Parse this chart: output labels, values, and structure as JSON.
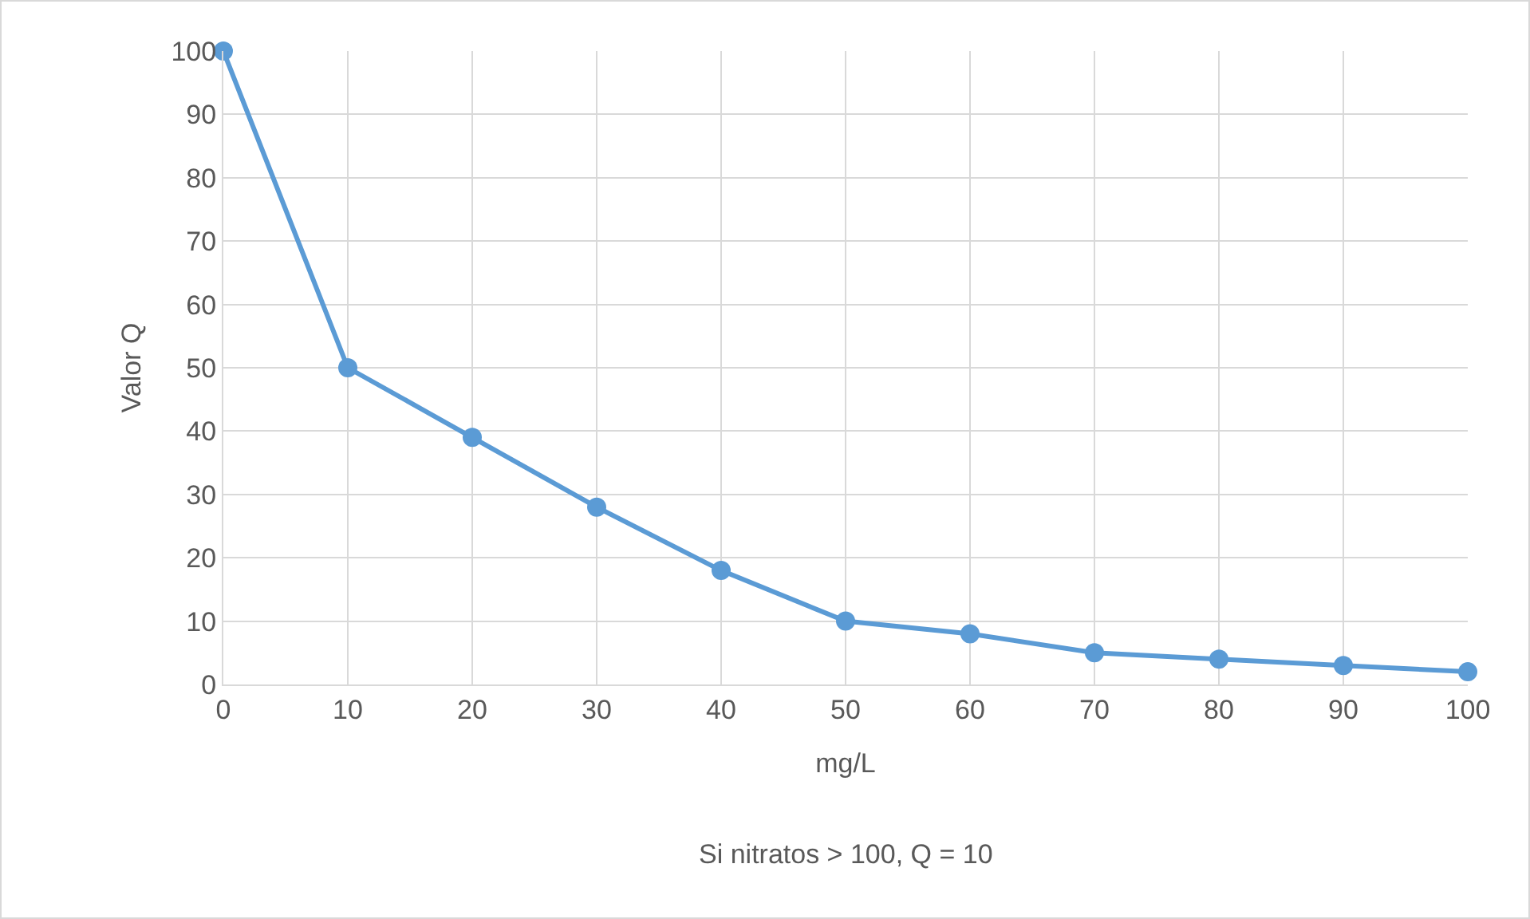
{
  "chart_data": {
    "type": "line",
    "xlabel": "mg/L",
    "ylabel": "Valor Q",
    "annotations": [
      "Si nitratos > 100, Q = 10"
    ],
    "x": [
      0,
      10,
      20,
      30,
      40,
      50,
      60,
      70,
      80,
      90,
      100
    ],
    "series": [
      {
        "color": "#5b9bd5",
        "values": [
          100,
          50,
          39,
          28,
          18,
          10,
          8,
          5,
          4,
          3,
          2
        ]
      }
    ],
    "xlim": [
      0,
      100
    ],
    "xticks": [
      0,
      10,
      20,
      30,
      40,
      50,
      60,
      70,
      80,
      90,
      100
    ],
    "ylim": [
      0,
      100
    ],
    "yticks": [
      0,
      10,
      20,
      30,
      40,
      50,
      60,
      70,
      80,
      90,
      100
    ],
    "grid": true,
    "marker": "circle",
    "line_style": "solid"
  }
}
